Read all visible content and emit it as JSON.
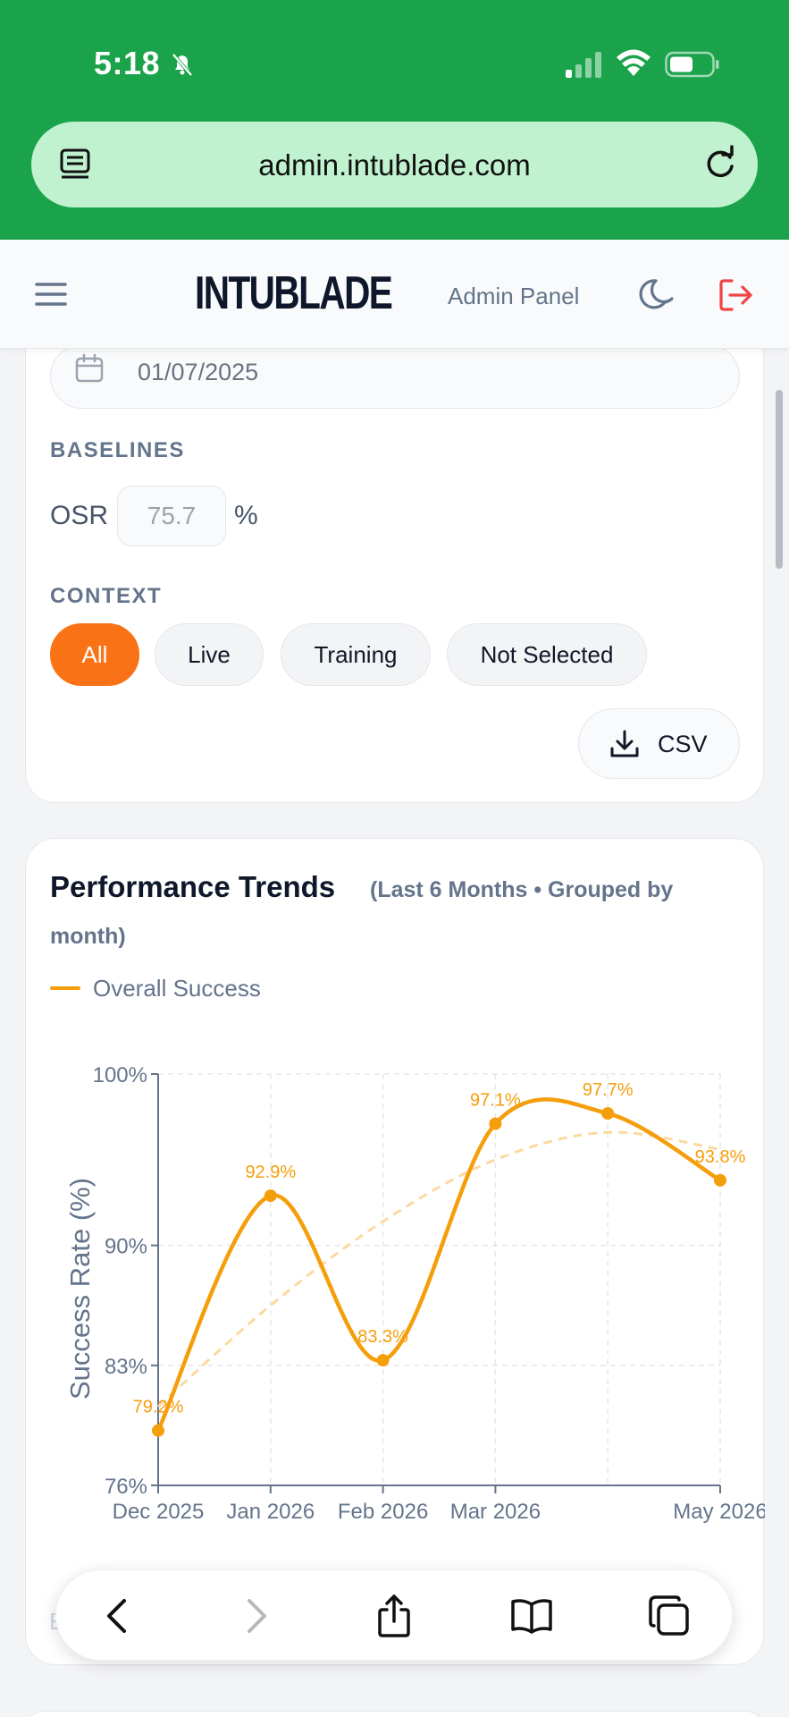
{
  "status": {
    "time": "5:18"
  },
  "browser": {
    "url": "admin.intublade.com"
  },
  "header": {
    "brand": "INTUBLADE",
    "subtitle": "Admin Panel"
  },
  "filters": {
    "date_value": "01/07/2025",
    "baselines_label": "BASELINES",
    "osr_label": "OSR",
    "osr_value": "75.7",
    "osr_unit": "%",
    "context_label": "CONTEXT",
    "context_options": [
      "All",
      "Live",
      "Training",
      "Not Selected"
    ],
    "context_selected": "All",
    "csv_label": "CSV"
  },
  "trends": {
    "title": "Performance Trends",
    "subtitle_line1": "(Last 6 Months • Grouped by",
    "subtitle_line2": "month)",
    "footer_hint": "E"
  },
  "chart_data": {
    "type": "line",
    "ylabel": "Success Rate (%)",
    "xlabel": "",
    "ylim": [
      76,
      100
    ],
    "y_ticks": [
      "100%",
      "90%",
      "83%",
      "76%"
    ],
    "y_tick_values": [
      100,
      90,
      83,
      76
    ],
    "x_ticks": [
      "Dec 2025",
      "Jan 2026",
      "Feb 2026",
      "Mar 2026",
      "",
      "May 2026"
    ],
    "x": [
      0,
      1,
      2,
      3,
      4,
      5
    ],
    "legend_position": "top-left",
    "grid": true,
    "series": [
      {
        "name": "Overall Success",
        "color": "#f59e0b",
        "values": [
          79.2,
          92.9,
          83.3,
          97.1,
          97.7,
          93.8
        ],
        "labels": [
          "79.2%",
          "92.9%",
          "83.3%",
          "97.1%",
          "97.7%",
          "93.8%"
        ]
      }
    ],
    "trend_line": {
      "style": "dashed",
      "color": "#fcd9a0",
      "values": [
        80.6,
        86.5,
        91.4,
        95.0,
        96.6,
        95.6
      ]
    }
  }
}
